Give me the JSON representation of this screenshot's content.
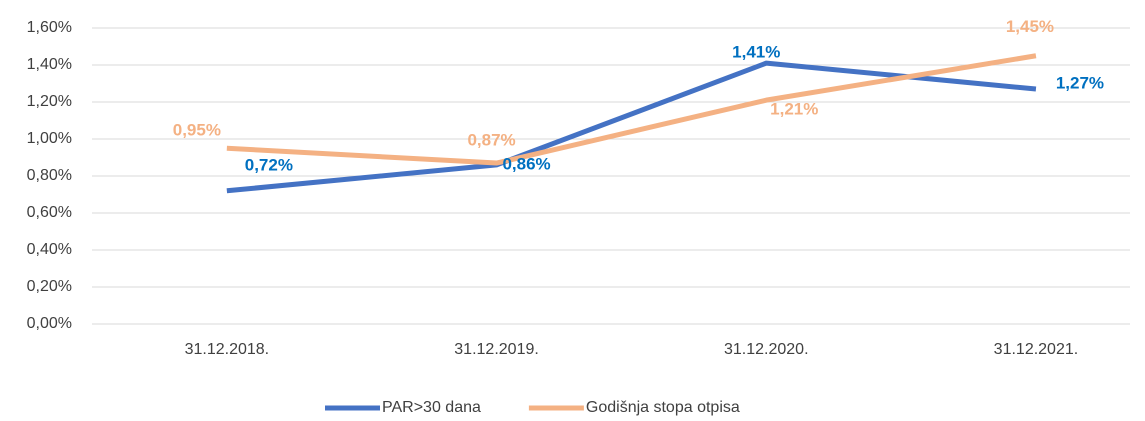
{
  "chart_data": {
    "type": "line",
    "categories": [
      "31.12.2018.",
      "31.12.2019.",
      "31.12.2020.",
      "31.12.2021."
    ],
    "series": [
      {
        "name": "PAR>30 dana",
        "color": "#4472c4",
        "values": [
          0.72,
          0.86,
          1.41,
          1.27
        ],
        "value_labels": [
          "0,72%",
          "0,86%",
          "1,41%",
          "1,27%"
        ]
      },
      {
        "name": "Godišnja stopa otpisa",
        "color": "#f4b183",
        "values": [
          0.95,
          0.87,
          1.21,
          1.45
        ],
        "value_labels": [
          "0,95%",
          "0,87%",
          "1,21%",
          "1,45%"
        ]
      }
    ],
    "ylim": [
      0,
      1.6
    ],
    "yticks": [
      {
        "value": 0,
        "label": "0,00%"
      },
      {
        "value": 0.2,
        "label": "0,20%"
      },
      {
        "value": 0.4,
        "label": "0,40%"
      },
      {
        "value": 0.6,
        "label": "0,60%"
      },
      {
        "value": 0.8,
        "label": "0,80%"
      },
      {
        "value": 1.0,
        "label": "1,00%"
      },
      {
        "value": 1.2,
        "label": "1,20%"
      },
      {
        "value": 1.4,
        "label": "1,40%"
      },
      {
        "value": 1.6,
        "label": "1,60%"
      }
    ],
    "grid": true,
    "legend": "bottom"
  }
}
